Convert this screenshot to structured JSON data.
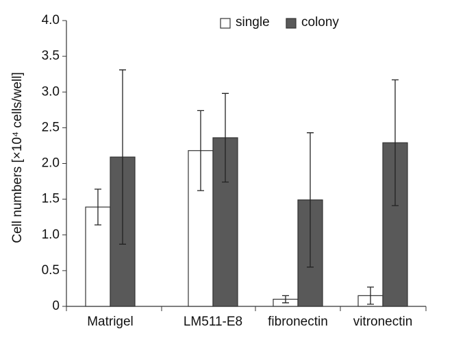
{
  "chart_data": {
    "type": "bar",
    "y_label": "Cell numbers [×10⁴ cells/well]",
    "categories": [
      "Matrigel",
      "LM511-E8",
      "fibronectin",
      "vitronectin"
    ],
    "series": [
      {
        "name": "single",
        "color": "#ffffff",
        "values": [
          1.39,
          2.18,
          0.1,
          0.15
        ],
        "errors": [
          0.25,
          0.56,
          0.05,
          0.12
        ]
      },
      {
        "name": "colony",
        "color": "#595959",
        "values": [
          2.09,
          2.36,
          1.49,
          2.29
        ],
        "errors": [
          1.22,
          0.62,
          0.94,
          0.88
        ]
      }
    ],
    "ylim": [
      0,
      4
    ],
    "yticks": [
      0,
      0.5,
      {
        "value": 1,
        "label": "1.0"
      },
      1.5,
      {
        "value": 2,
        "label": "2.0"
      },
      2.5,
      {
        "value": 3,
        "label": "3.0"
      },
      3.5,
      {
        "value": 4,
        "label": "4.0"
      }
    ],
    "legend": "top"
  }
}
